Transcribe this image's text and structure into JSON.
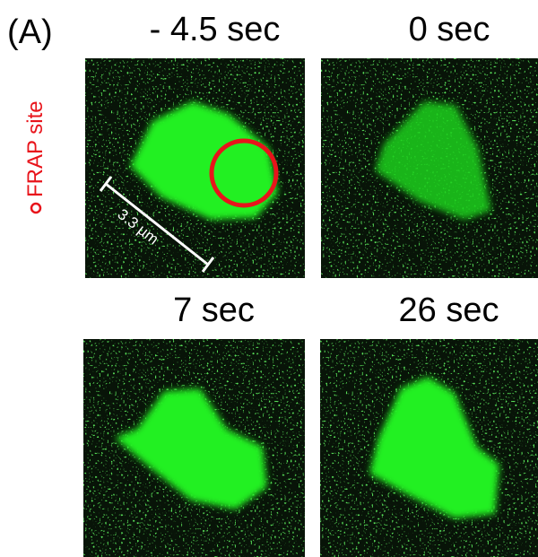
{
  "panel_label": "(A)",
  "legend": "FRAP site",
  "scale_bar": "3.3 µm",
  "frames": [
    "- 4.5 sec",
    "0 sec",
    "7 sec",
    "26 sec"
  ]
}
